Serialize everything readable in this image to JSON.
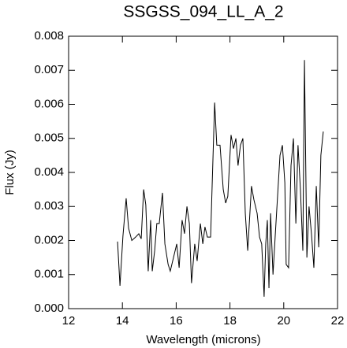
{
  "chart_data": {
    "type": "line",
    "title": "SSGSS_094_LL_A_2",
    "x_label": "Wavelength (microns)",
    "y_label": "Flux (Jy)",
    "xlim": [
      12,
      22
    ],
    "xticks": [
      12,
      14,
      16,
      18,
      20,
      22
    ],
    "ylim": [
      0,
      0.008
    ],
    "yticks": [
      {
        "value": 0,
        "label": "0.000"
      },
      0.001,
      0.002,
      0.003,
      0.004,
      0.005,
      0.006,
      0.007,
      0.008
    ],
    "color": "#000000",
    "x": [
      13.82,
      13.91,
      14.02,
      14.14,
      14.23,
      14.35,
      14.49,
      14.61,
      14.7,
      14.79,
      14.87,
      14.96,
      15.05,
      15.11,
      15.2,
      15.28,
      15.37,
      15.49,
      15.58,
      15.7,
      15.78,
      15.9,
      16.02,
      16.11,
      16.22,
      16.31,
      16.4,
      16.49,
      16.57,
      16.69,
      16.78,
      16.9,
      16.99,
      17.07,
      17.16,
      17.28,
      17.43,
      17.51,
      17.63,
      17.75,
      17.84,
      17.92,
      18.04,
      18.13,
      18.22,
      18.3,
      18.39,
      18.48,
      18.57,
      18.66,
      18.8,
      18.89,
      19.01,
      19.1,
      19.18,
      19.27,
      19.33,
      19.39,
      19.45,
      19.51,
      19.6,
      19.68,
      19.77,
      19.86,
      19.95,
      20.04,
      20.09,
      20.18,
      20.27,
      20.36,
      20.45,
      20.53,
      20.62,
      20.71,
      20.77,
      20.86,
      20.94,
      21.03,
      21.12,
      21.21,
      21.3,
      21.38,
      21.47
    ],
    "values": [
      0.00197,
      0.00067,
      0.00213,
      0.00324,
      0.00236,
      0.002,
      0.0021,
      0.0022,
      0.00205,
      0.0035,
      0.00305,
      0.0011,
      0.0026,
      0.0011,
      0.0017,
      0.0025,
      0.0025,
      0.0034,
      0.0019,
      0.0013,
      0.0011,
      0.0015,
      0.0019,
      0.0012,
      0.0026,
      0.0022,
      0.003,
      0.0025,
      0.00075,
      0.0019,
      0.0014,
      0.0025,
      0.0019,
      0.0024,
      0.0021,
      0.0021,
      0.00605,
      0.0048,
      0.0048,
      0.0035,
      0.0031,
      0.0033,
      0.0051,
      0.0047,
      0.005,
      0.0042,
      0.0048,
      0.005,
      0.0028,
      0.0017,
      0.0036,
      0.0032,
      0.0028,
      0.0021,
      0.0019,
      0.00035,
      0.0019,
      0.0026,
      0.0006,
      0.0028,
      0.001,
      0.0021,
      0.0033,
      0.0045,
      0.0048,
      0.0037,
      0.0013,
      0.0012,
      0.0042,
      0.005,
      0.0025,
      0.0048,
      0.0035,
      0.0017,
      0.0073,
      0.0015,
      0.003,
      0.0022,
      0.0012,
      0.0036,
      0.0018,
      0.0045,
      0.0052
    ]
  }
}
